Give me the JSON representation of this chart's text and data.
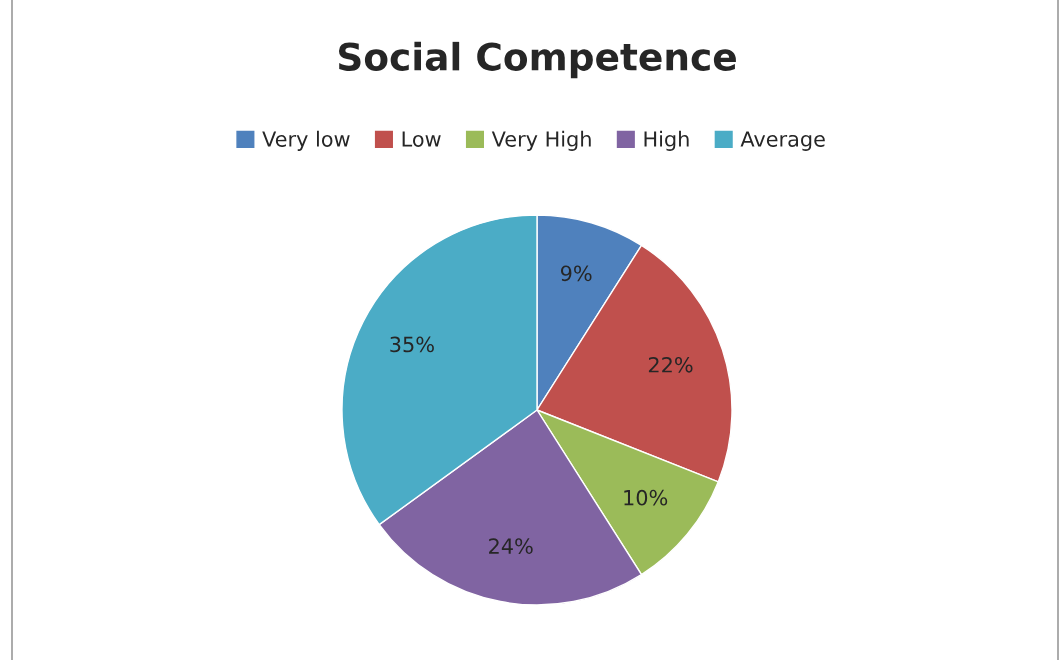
{
  "chart_data": {
    "type": "pie",
    "title": "Social Competence",
    "categories": [
      "Very low",
      "Low",
      "Very High",
      "High",
      "Average"
    ],
    "values": [
      9,
      22,
      10,
      24,
      35
    ],
    "value_labels": [
      "9%",
      "22%",
      "10%",
      "24%",
      "35%"
    ],
    "colors": [
      "#4f81bd",
      "#c0504d",
      "#9bbb59",
      "#8064a2",
      "#4bacc6"
    ],
    "legend": "top"
  }
}
